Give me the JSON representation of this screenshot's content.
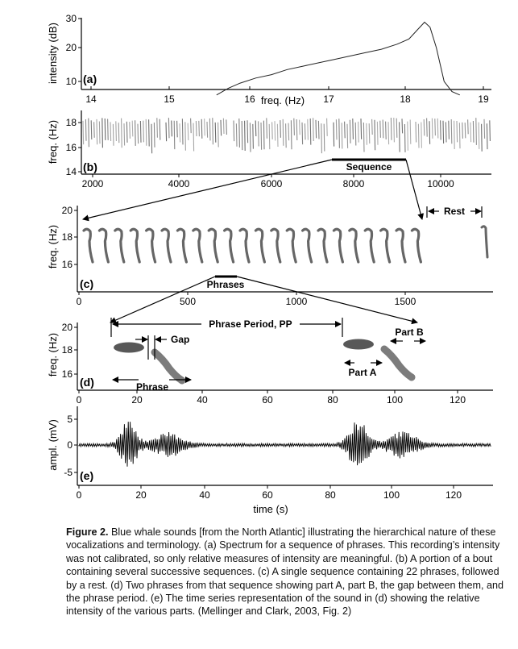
{
  "panels": {
    "a": {
      "label": "(a)",
      "ylabel": "intensity (dB)",
      "xlabel": "freq. (Hz)",
      "yticks": [
        "10",
        "20",
        "30"
      ],
      "xticks": [
        "14",
        "15",
        "16",
        "17",
        "18",
        "19"
      ]
    },
    "b": {
      "label": "(b)",
      "ylabel": "freq. (Hz)",
      "yticks": [
        "14",
        "16",
        "18"
      ],
      "xticks": [
        "2000",
        "4000",
        "6000",
        "8000",
        "10000"
      ],
      "annotation": "Sequence"
    },
    "c": {
      "label": "(c)",
      "ylabel": "freq. (Hz)",
      "yticks": [
        "16",
        "18",
        "20"
      ],
      "xticks": [
        "0",
        "500",
        "1000",
        "1500"
      ],
      "annotations": {
        "phrases": "Phrases",
        "rest": "Rest"
      }
    },
    "d": {
      "label": "(d)",
      "ylabel": "freq. (Hz)",
      "yticks": [
        "16",
        "18",
        "20"
      ],
      "xticks": [
        "0",
        "20",
        "40",
        "60",
        "80",
        "100",
        "120"
      ],
      "annotations": {
        "phrase_period": "Phrase Period, PP",
        "gap": "Gap",
        "phrase": "Phrase",
        "part_a": "Part A",
        "part_b": "Part B"
      }
    },
    "e": {
      "label": "(e)",
      "ylabel": "ampl. (mV)",
      "yticks": [
        "-5",
        "0",
        "5"
      ],
      "xticks": [
        "0",
        "20",
        "40",
        "60",
        "80",
        "100",
        "120"
      ],
      "xlabel": "time (s)"
    }
  },
  "caption": {
    "title": "Figure 2.",
    "text": " Blue whale sounds [from the North Atlantic] illustrating the hierarchical nature of these vocalizations and terminology. (a) Spectrum for a sequence of phrases. This recording’s intensity was not calibrated, so only relative measures of intensity are meaningful. (b) A portion of a bout containing several successive sequences. (c) A single sequence containing 22 phrases, followed by a rest. (d) Two phrases from that sequence showing part A, part B, the gap between them, and the phrase period. (e) The time series representation of the sound in (d) showing the relative intensity of the various parts. (Mellinger and Clark, 2003, Fig. 2)"
  },
  "chart_data": [
    {
      "type": "line",
      "panel": "a",
      "xlabel": "freq. (Hz)",
      "ylabel": "intensity (dB)",
      "xlim": [
        13.8,
        19.1
      ],
      "ylim": [
        5,
        30
      ],
      "series": [
        {
          "x": [
            15.6,
            15.75,
            15.9,
            16.1,
            16.3,
            16.5,
            16.7,
            16.9,
            17.1,
            17.3,
            17.5,
            17.7,
            17.9,
            18.05,
            18.15,
            18.25,
            18.32,
            18.4,
            18.5,
            18.6,
            18.7
          ],
          "values": [
            6,
            8,
            9.5,
            11,
            12,
            13.5,
            14.5,
            15.5,
            16.5,
            17.5,
            18.5,
            19.5,
            21,
            22.5,
            25,
            27.5,
            26,
            20,
            10,
            7,
            6
          ]
        }
      ]
    }
  ]
}
